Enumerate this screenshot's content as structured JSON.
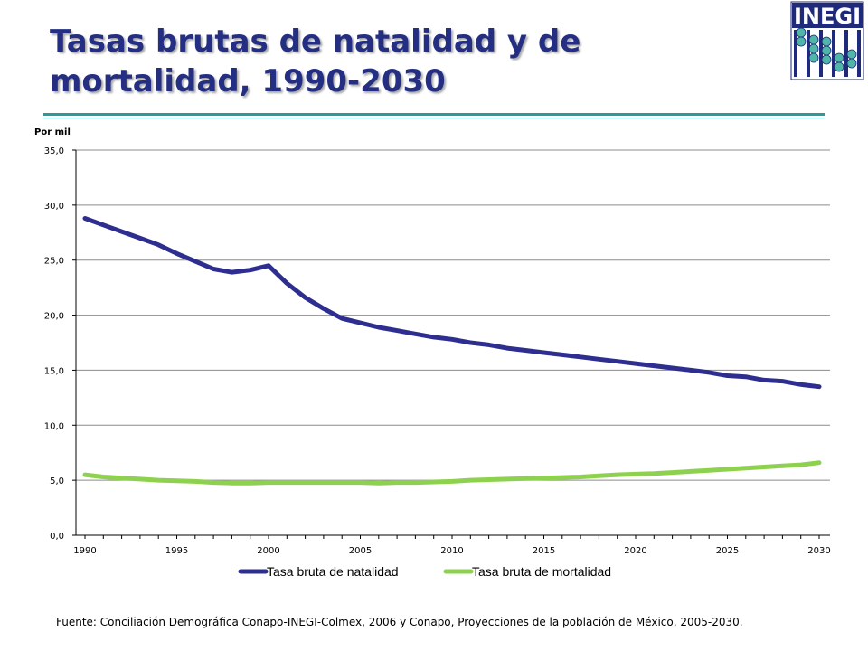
{
  "slide": {
    "title_line1": "Tasas brutas de natalidad y de",
    "title_line2": "mortalidad, 1990-2030",
    "logo_text": "INEGI",
    "source": "Fuente: Conciliación Demográfica Conapo-INEGI-Colmex, 2006 y Conapo, Proyecciones de la población de México, 2005-2030."
  },
  "chart_data": {
    "type": "line",
    "title": "",
    "ylabel": "Por mil",
    "xlabel": "",
    "x": [
      1990,
      1991,
      1992,
      1993,
      1994,
      1995,
      1996,
      1997,
      1998,
      1999,
      2000,
      2001,
      2002,
      2003,
      2004,
      2005,
      2006,
      2007,
      2008,
      2009,
      2010,
      2011,
      2012,
      2013,
      2014,
      2015,
      2016,
      2017,
      2018,
      2019,
      2020,
      2021,
      2022,
      2023,
      2024,
      2025,
      2026,
      2027,
      2028,
      2029,
      2030
    ],
    "xticks": [
      1990,
      1995,
      2000,
      2005,
      2010,
      2015,
      2020,
      2025,
      2030
    ],
    "yticks": [
      "0,0",
      "5,0",
      "10,0",
      "15,0",
      "20,0",
      "25,0",
      "30,0",
      "35,0"
    ],
    "ylim": [
      0,
      35
    ],
    "grid": true,
    "legend_position": "bottom",
    "series": [
      {
        "name": "Tasa bruta de natalidad",
        "color": "#2d2e8f",
        "values": [
          28.8,
          28.2,
          27.6,
          27.0,
          26.4,
          25.6,
          24.9,
          24.2,
          23.9,
          24.1,
          24.5,
          22.9,
          21.6,
          20.6,
          19.7,
          19.3,
          18.9,
          18.6,
          18.3,
          18.0,
          17.8,
          17.5,
          17.3,
          17.0,
          16.8,
          16.6,
          16.4,
          16.2,
          16.0,
          15.8,
          15.6,
          15.4,
          15.2,
          15.0,
          14.8,
          14.5,
          14.4,
          14.1,
          14.0,
          13.7,
          13.5
        ]
      },
      {
        "name": "Tasa bruta de mortalidad",
        "color": "#8ed14f",
        "values": [
          5.5,
          5.3,
          5.2,
          5.1,
          5.0,
          4.95,
          4.9,
          4.8,
          4.75,
          4.75,
          4.8,
          4.8,
          4.8,
          4.8,
          4.8,
          4.8,
          4.75,
          4.8,
          4.8,
          4.85,
          4.9,
          5.0,
          5.05,
          5.1,
          5.15,
          5.2,
          5.25,
          5.3,
          5.4,
          5.5,
          5.55,
          5.6,
          5.7,
          5.8,
          5.9,
          6.0,
          6.1,
          6.2,
          6.3,
          6.4,
          6.6
        ]
      }
    ]
  }
}
